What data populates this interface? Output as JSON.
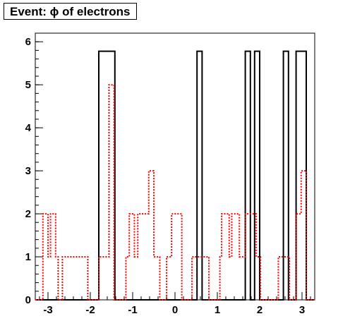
{
  "chart_data": {
    "type": "histogram",
    "title": "Event: ϕ of electrons",
    "xlabel": "",
    "ylabel": "",
    "xlim": [
      -3.3,
      3.3
    ],
    "ylim": [
      0,
      6.2
    ],
    "x_ticks": [
      -3,
      -2,
      -1,
      0,
      1,
      2,
      3
    ],
    "y_ticks": [
      0,
      1,
      2,
      3,
      4,
      5,
      6
    ],
    "grid": false,
    "legend": "none",
    "series": [
      {
        "style": "solid",
        "color": "#000000",
        "steps": [
          [
            -3.3,
            0
          ],
          [
            -1.8,
            0
          ],
          [
            -1.8,
            5.78
          ],
          [
            -1.42,
            5.78
          ],
          [
            -1.42,
            0
          ],
          [
            0.52,
            0
          ],
          [
            0.52,
            5.78
          ],
          [
            0.64,
            5.78
          ],
          [
            0.64,
            0
          ],
          [
            1.66,
            0
          ],
          [
            1.66,
            5.78
          ],
          [
            1.78,
            5.78
          ],
          [
            1.78,
            0
          ],
          [
            1.88,
            0
          ],
          [
            1.88,
            5.78
          ],
          [
            2.0,
            5.78
          ],
          [
            2.0,
            0
          ],
          [
            2.56,
            0
          ],
          [
            2.56,
            5.78
          ],
          [
            2.68,
            5.78
          ],
          [
            2.68,
            0
          ],
          [
            2.86,
            0
          ],
          [
            2.86,
            5.78
          ],
          [
            3.1,
            5.78
          ],
          [
            3.1,
            0
          ],
          [
            3.3,
            0
          ]
        ]
      },
      {
        "style": "dotted",
        "color": "#ff0000",
        "steps": [
          [
            -3.3,
            0
          ],
          [
            -3.12,
            0
          ],
          [
            -3.12,
            2
          ],
          [
            -3.0,
            2
          ],
          [
            -3.0,
            1
          ],
          [
            -2.94,
            1
          ],
          [
            -2.94,
            2
          ],
          [
            -2.82,
            2
          ],
          [
            -2.82,
            1
          ],
          [
            -2.76,
            1
          ],
          [
            -2.76,
            0
          ],
          [
            -2.66,
            0
          ],
          [
            -2.66,
            1
          ],
          [
            -2.06,
            1
          ],
          [
            -2.06,
            0
          ],
          [
            -1.8,
            0
          ],
          [
            -1.8,
            1
          ],
          [
            -1.56,
            1
          ],
          [
            -1.56,
            5
          ],
          [
            -1.44,
            5
          ],
          [
            -1.44,
            0
          ],
          [
            -1.16,
            0
          ],
          [
            -1.16,
            1
          ],
          [
            -1.08,
            1
          ],
          [
            -1.08,
            2
          ],
          [
            -0.96,
            2
          ],
          [
            -0.96,
            1
          ],
          [
            -0.88,
            1
          ],
          [
            -0.88,
            2
          ],
          [
            -0.62,
            2
          ],
          [
            -0.62,
            3
          ],
          [
            -0.5,
            3
          ],
          [
            -0.5,
            1
          ],
          [
            -0.36,
            1
          ],
          [
            -0.36,
            0
          ],
          [
            -0.2,
            0
          ],
          [
            -0.2,
            1
          ],
          [
            -0.08,
            1
          ],
          [
            -0.08,
            2
          ],
          [
            0.16,
            2
          ],
          [
            0.16,
            0
          ],
          [
            0.4,
            0
          ],
          [
            0.4,
            1
          ],
          [
            0.8,
            1
          ],
          [
            0.8,
            0
          ],
          [
            1.06,
            0
          ],
          [
            1.06,
            1
          ],
          [
            1.1,
            1
          ],
          [
            1.1,
            2
          ],
          [
            1.28,
            2
          ],
          [
            1.28,
            1
          ],
          [
            1.34,
            1
          ],
          [
            1.34,
            2
          ],
          [
            1.52,
            2
          ],
          [
            1.52,
            1
          ],
          [
            1.66,
            1
          ],
          [
            1.66,
            2
          ],
          [
            1.92,
            2
          ],
          [
            1.92,
            1
          ],
          [
            2.02,
            1
          ],
          [
            2.02,
            0
          ],
          [
            2.44,
            0
          ],
          [
            2.44,
            1
          ],
          [
            2.7,
            1
          ],
          [
            2.7,
            0
          ],
          [
            2.86,
            0
          ],
          [
            2.86,
            2
          ],
          [
            2.98,
            2
          ],
          [
            2.98,
            3
          ],
          [
            3.1,
            3
          ],
          [
            3.1,
            0
          ],
          [
            3.3,
            0
          ]
        ]
      }
    ]
  }
}
